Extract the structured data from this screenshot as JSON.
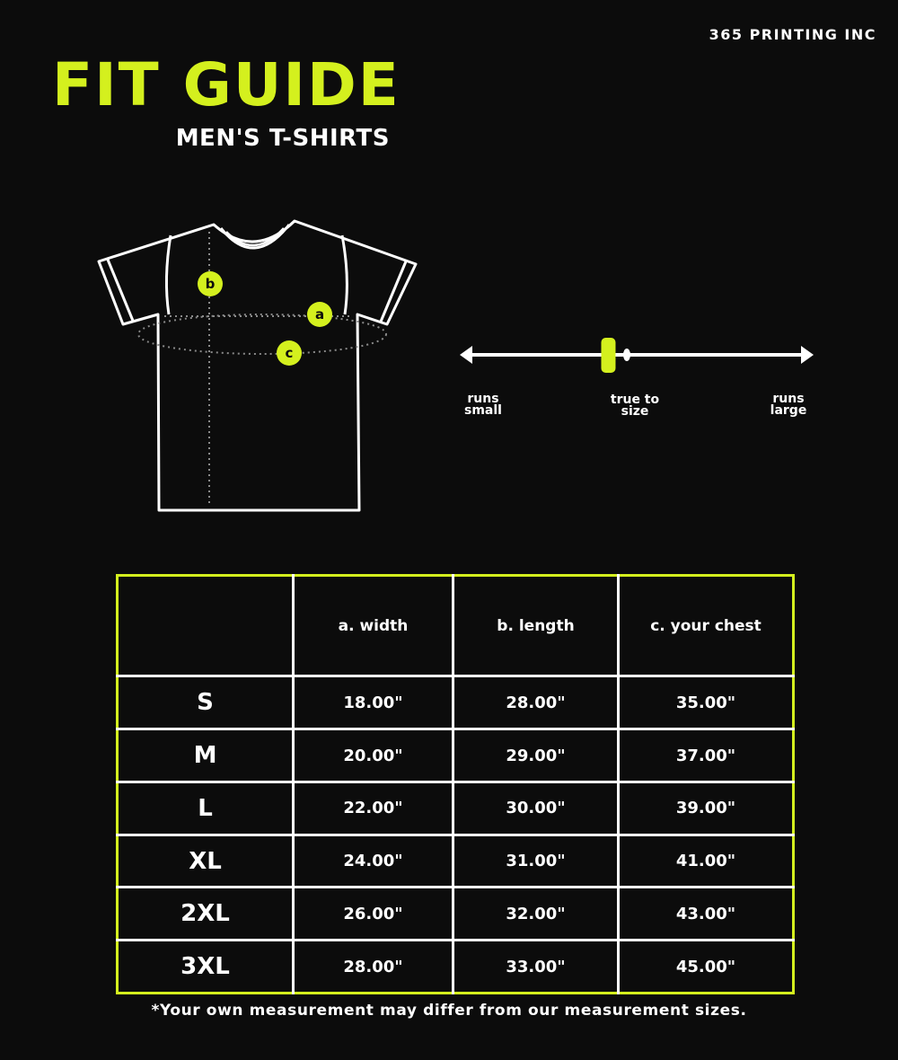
{
  "brand": "365 PRINTING INC",
  "title": "FIT GUIDE",
  "subtitle": "MEN'S T-SHIRTS",
  "accent_color": "#d4f01e",
  "diagram": {
    "markers": [
      "a",
      "b",
      "c"
    ]
  },
  "fit_scale": {
    "labels": [
      "runs small",
      "true to size",
      "runs large"
    ],
    "position_fraction": 0.42
  },
  "table": {
    "headers": [
      "",
      "a. width",
      "b. length",
      "c. your chest"
    ],
    "rows": [
      [
        "S",
        "18.00\"",
        "28.00\"",
        "35.00\""
      ],
      [
        "M",
        "20.00\"",
        "29.00\"",
        "37.00\""
      ],
      [
        "L",
        "22.00\"",
        "30.00\"",
        "39.00\""
      ],
      [
        "XL",
        "24.00\"",
        "31.00\"",
        "41.00\""
      ],
      [
        "2XL",
        "26.00\"",
        "32.00\"",
        "43.00\""
      ],
      [
        "3XL",
        "28.00\"",
        "33.00\"",
        "45.00\""
      ]
    ]
  },
  "footnote": "*Your own measurement may differ from our measurement sizes."
}
